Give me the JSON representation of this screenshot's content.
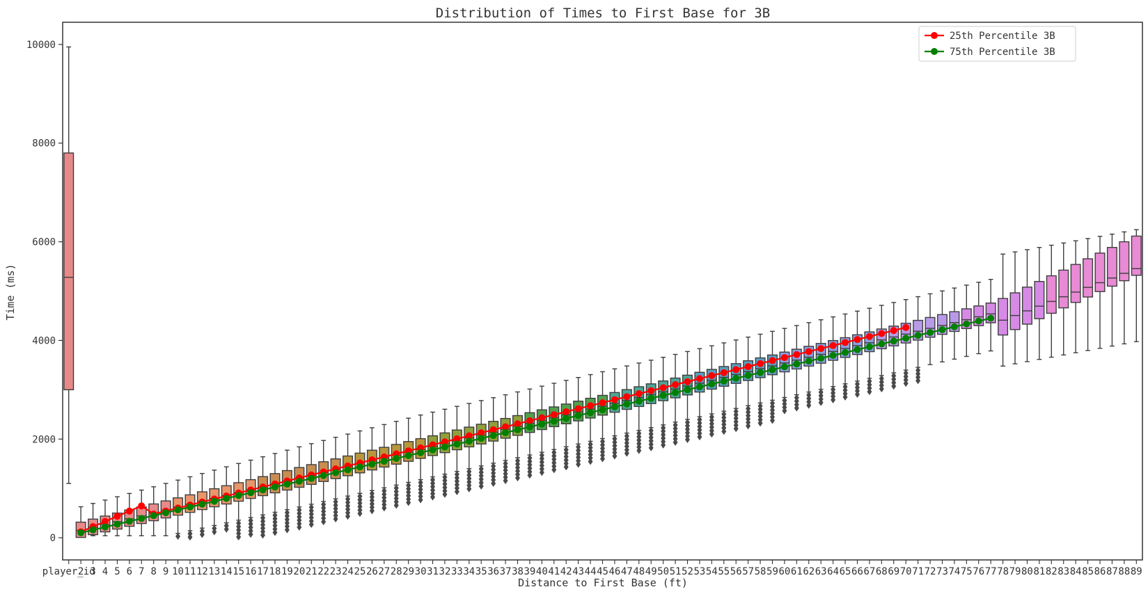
{
  "chart_data": {
    "type": "box",
    "title": "Distribution of Times to First Base for 3B",
    "xlabel": "Distance to First Base (ft)",
    "ylabel": "Time (ms)",
    "ylim": [
      -450,
      10450
    ],
    "yticks": [
      0,
      2000,
      4000,
      6000,
      8000,
      10000
    ],
    "first_category": "player_id",
    "category_range": [
      2,
      89
    ],
    "legend": {
      "position": "top-right",
      "entries": [
        {
          "label": "25th Percentile 3B",
          "color": "#ff0000"
        },
        {
          "label": "75th Percentile 3B",
          "color": "#008000"
        }
      ]
    },
    "player_id_box": {
      "whisker_low": 1100,
      "q1": 3000,
      "median": 5280,
      "q3": 7800,
      "whisker_high": 9950
    },
    "series": [
      {
        "name": "25th Percentile 3B",
        "color": "#ff0000",
        "x_from": 2,
        "x_to": 70,
        "start": 120,
        "slope": 60
      },
      {
        "name": "75th Percentile 3B",
        "color": "#008000",
        "x_from": 2,
        "x_to": 77,
        "start": 100,
        "slope": 58
      }
    ],
    "box_palette": [
      "#e88a8a",
      "#e8966b",
      "#c98d52",
      "#b8963c",
      "#8fa03c",
      "#52a04e",
      "#4fa596",
      "#5b9ec0",
      "#8a9fe0",
      "#b89ae8",
      "#d68ae6",
      "#e88ad4"
    ],
    "outliers": "shown for 10-ft through 71-ft boxes"
  }
}
